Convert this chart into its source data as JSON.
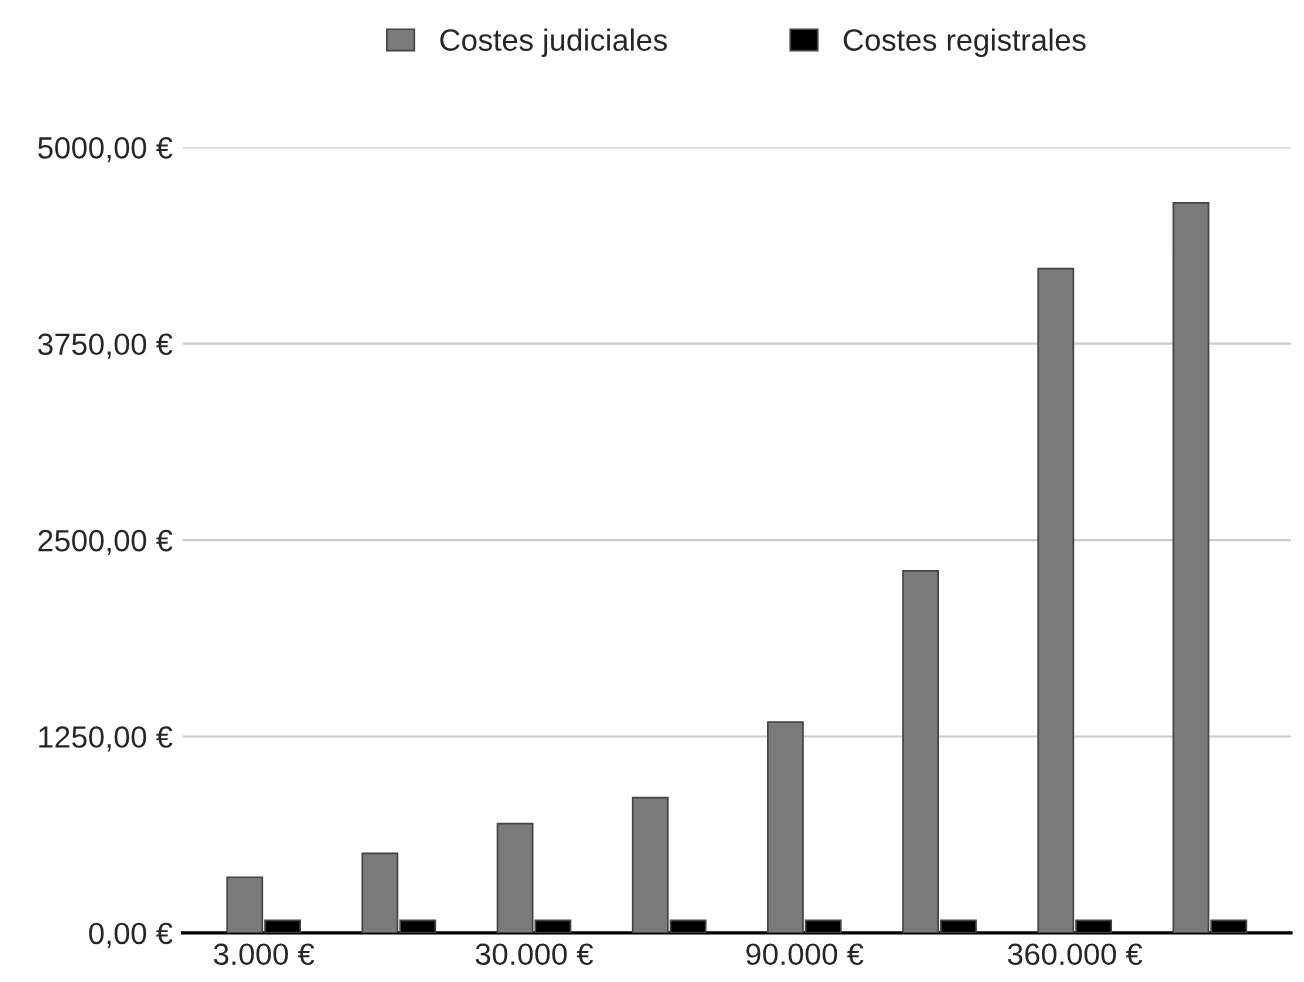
{
  "chart_data": {
    "type": "bar",
    "categories": [
      "3.000 €",
      null,
      "30.000 €",
      null,
      "90.000 €",
      null,
      "360.000 €",
      null
    ],
    "series": [
      {
        "name": "Costes judiciales",
        "color": "#7a7a7a",
        "values": [
          354,
          506,
          696,
          861,
          1342,
          2304,
          4228,
          4646
        ]
      },
      {
        "name": "Costes registrales",
        "color": "#000000",
        "values": [
          80,
          80,
          80,
          80,
          80,
          80,
          80,
          80
        ]
      }
    ],
    "ylim": [
      0,
      5000
    ],
    "yticks": [
      {
        "value": 0,
        "label": "0,00 €"
      },
      {
        "value": 1250,
        "label": "1250,00 €"
      },
      {
        "value": 2500,
        "label": "2500,00 €"
      },
      {
        "value": 3750,
        "label": "3750,00 €"
      },
      {
        "value": 5000,
        "label": "5000,00 €"
      }
    ],
    "grid": "y",
    "legend": "top"
  }
}
